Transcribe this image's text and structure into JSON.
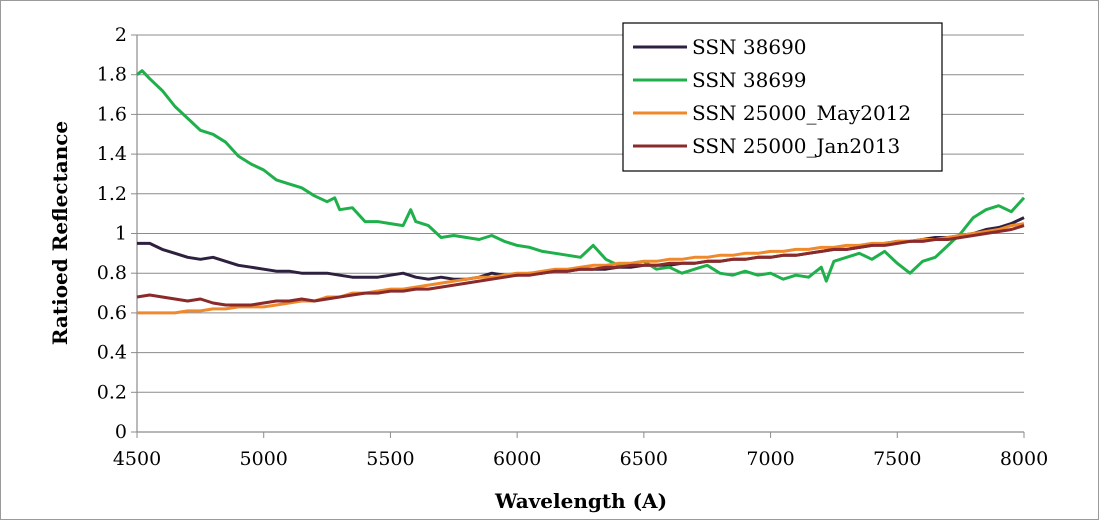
{
  "chart_data": {
    "type": "line",
    "title": "",
    "xlabel": "Wavelength (A)",
    "ylabel": "Ratioed Reflectance",
    "xlim": [
      4500,
      8000
    ],
    "ylim": [
      0,
      2
    ],
    "x_ticks": [
      4500,
      5000,
      5500,
      6000,
      6500,
      7000,
      7500,
      8000
    ],
    "y_ticks": [
      0,
      0.2,
      0.4,
      0.6,
      0.8,
      1,
      1.2,
      1.4,
      1.6,
      1.8,
      2
    ],
    "y_tick_labels": [
      "0",
      "0.2",
      "0.4",
      "0.6",
      "0.8",
      "1",
      "1.2",
      "1.4",
      "1.6",
      "1.8",
      "2"
    ],
    "grid": "horizontal",
    "legend_position": "top-right",
    "series": [
      {
        "name": "SSN 38690",
        "color": "#2e2140",
        "points": [
          [
            4500,
            0.95
          ],
          [
            4550,
            0.95
          ],
          [
            4600,
            0.92
          ],
          [
            4650,
            0.9
          ],
          [
            4700,
            0.88
          ],
          [
            4750,
            0.87
          ],
          [
            4800,
            0.88
          ],
          [
            4850,
            0.86
          ],
          [
            4900,
            0.84
          ],
          [
            4950,
            0.83
          ],
          [
            5000,
            0.82
          ],
          [
            5050,
            0.81
          ],
          [
            5100,
            0.81
          ],
          [
            5150,
            0.8
          ],
          [
            5200,
            0.8
          ],
          [
            5250,
            0.8
          ],
          [
            5300,
            0.79
          ],
          [
            5350,
            0.78
          ],
          [
            5400,
            0.78
          ],
          [
            5450,
            0.78
          ],
          [
            5500,
            0.79
          ],
          [
            5550,
            0.8
          ],
          [
            5600,
            0.78
          ],
          [
            5650,
            0.77
          ],
          [
            5700,
            0.78
          ],
          [
            5750,
            0.77
          ],
          [
            5800,
            0.77
          ],
          [
            5850,
            0.78
          ],
          [
            5900,
            0.8
          ],
          [
            5950,
            0.79
          ],
          [
            6000,
            0.79
          ],
          [
            6050,
            0.8
          ],
          [
            6100,
            0.8
          ],
          [
            6150,
            0.81
          ],
          [
            6200,
            0.81
          ],
          [
            6250,
            0.82
          ],
          [
            6300,
            0.82
          ],
          [
            6350,
            0.82
          ],
          [
            6400,
            0.83
          ],
          [
            6450,
            0.83
          ],
          [
            6500,
            0.84
          ],
          [
            6550,
            0.84
          ],
          [
            6600,
            0.84
          ],
          [
            6650,
            0.85
          ],
          [
            6700,
            0.85
          ],
          [
            6750,
            0.86
          ],
          [
            6800,
            0.86
          ],
          [
            6850,
            0.87
          ],
          [
            6900,
            0.87
          ],
          [
            6950,
            0.88
          ],
          [
            7000,
            0.88
          ],
          [
            7050,
            0.89
          ],
          [
            7100,
            0.89
          ],
          [
            7150,
            0.9
          ],
          [
            7200,
            0.91
          ],
          [
            7250,
            0.92
          ],
          [
            7300,
            0.92
          ],
          [
            7350,
            0.93
          ],
          [
            7400,
            0.94
          ],
          [
            7450,
            0.95
          ],
          [
            7500,
            0.96
          ],
          [
            7550,
            0.96
          ],
          [
            7600,
            0.97
          ],
          [
            7650,
            0.98
          ],
          [
            7700,
            0.98
          ],
          [
            7750,
            0.99
          ],
          [
            7800,
            1.0
          ],
          [
            7850,
            1.02
          ],
          [
            7900,
            1.03
          ],
          [
            7950,
            1.05
          ],
          [
            8000,
            1.08
          ]
        ]
      },
      {
        "name": "SSN 38699",
        "color": "#1fb04b",
        "points": [
          [
            4500,
            1.8
          ],
          [
            4520,
            1.82
          ],
          [
            4550,
            1.78
          ],
          [
            4600,
            1.72
          ],
          [
            4650,
            1.64
          ],
          [
            4700,
            1.58
          ],
          [
            4750,
            1.52
          ],
          [
            4800,
            1.5
          ],
          [
            4850,
            1.46
          ],
          [
            4900,
            1.39
          ],
          [
            4950,
            1.35
          ],
          [
            5000,
            1.32
          ],
          [
            5050,
            1.27
          ],
          [
            5100,
            1.25
          ],
          [
            5150,
            1.23
          ],
          [
            5200,
            1.19
          ],
          [
            5250,
            1.16
          ],
          [
            5280,
            1.18
          ],
          [
            5300,
            1.12
          ],
          [
            5350,
            1.13
          ],
          [
            5400,
            1.06
          ],
          [
            5450,
            1.06
          ],
          [
            5500,
            1.05
          ],
          [
            5550,
            1.04
          ],
          [
            5580,
            1.12
          ],
          [
            5600,
            1.06
          ],
          [
            5650,
            1.04
          ],
          [
            5700,
            0.98
          ],
          [
            5750,
            0.99
          ],
          [
            5800,
            0.98
          ],
          [
            5850,
            0.97
          ],
          [
            5900,
            0.99
          ],
          [
            5950,
            0.96
          ],
          [
            6000,
            0.94
          ],
          [
            6050,
            0.93
          ],
          [
            6100,
            0.91
          ],
          [
            6150,
            0.9
          ],
          [
            6200,
            0.89
          ],
          [
            6250,
            0.88
          ],
          [
            6300,
            0.94
          ],
          [
            6350,
            0.87
          ],
          [
            6400,
            0.84
          ],
          [
            6450,
            0.85
          ],
          [
            6500,
            0.86
          ],
          [
            6550,
            0.82
          ],
          [
            6600,
            0.83
          ],
          [
            6650,
            0.8
          ],
          [
            6700,
            0.82
          ],
          [
            6750,
            0.84
          ],
          [
            6800,
            0.8
          ],
          [
            6850,
            0.79
          ],
          [
            6900,
            0.81
          ],
          [
            6950,
            0.79
          ],
          [
            7000,
            0.8
          ],
          [
            7050,
            0.77
          ],
          [
            7100,
            0.79
          ],
          [
            7150,
            0.78
          ],
          [
            7200,
            0.83
          ],
          [
            7220,
            0.76
          ],
          [
            7250,
            0.86
          ],
          [
            7300,
            0.88
          ],
          [
            7350,
            0.9
          ],
          [
            7400,
            0.87
          ],
          [
            7450,
            0.91
          ],
          [
            7500,
            0.85
          ],
          [
            7550,
            0.8
          ],
          [
            7600,
            0.86
          ],
          [
            7650,
            0.88
          ],
          [
            7700,
            0.94
          ],
          [
            7750,
            1.0
          ],
          [
            7800,
            1.08
          ],
          [
            7850,
            1.12
          ],
          [
            7900,
            1.14
          ],
          [
            7950,
            1.11
          ],
          [
            8000,
            1.18
          ]
        ]
      },
      {
        "name": "SSN 25000_May2012",
        "color": "#f0892b",
        "points": [
          [
            4500,
            0.6
          ],
          [
            4550,
            0.6
          ],
          [
            4600,
            0.6
          ],
          [
            4650,
            0.6
          ],
          [
            4700,
            0.61
          ],
          [
            4750,
            0.61
          ],
          [
            4800,
            0.62
          ],
          [
            4850,
            0.62
          ],
          [
            4900,
            0.63
          ],
          [
            4950,
            0.63
          ],
          [
            5000,
            0.63
          ],
          [
            5050,
            0.64
          ],
          [
            5100,
            0.65
          ],
          [
            5150,
            0.66
          ],
          [
            5200,
            0.66
          ],
          [
            5250,
            0.68
          ],
          [
            5300,
            0.68
          ],
          [
            5350,
            0.7
          ],
          [
            5400,
            0.7
          ],
          [
            5450,
            0.71
          ],
          [
            5500,
            0.72
          ],
          [
            5550,
            0.72
          ],
          [
            5600,
            0.73
          ],
          [
            5650,
            0.74
          ],
          [
            5700,
            0.75
          ],
          [
            5750,
            0.76
          ],
          [
            5800,
            0.77
          ],
          [
            5850,
            0.78
          ],
          [
            5900,
            0.78
          ],
          [
            5950,
            0.79
          ],
          [
            6000,
            0.8
          ],
          [
            6050,
            0.8
          ],
          [
            6100,
            0.81
          ],
          [
            6150,
            0.82
          ],
          [
            6200,
            0.82
          ],
          [
            6250,
            0.83
          ],
          [
            6300,
            0.84
          ],
          [
            6350,
            0.84
          ],
          [
            6400,
            0.85
          ],
          [
            6450,
            0.85
          ],
          [
            6500,
            0.86
          ],
          [
            6550,
            0.86
          ],
          [
            6600,
            0.87
          ],
          [
            6650,
            0.87
          ],
          [
            6700,
            0.88
          ],
          [
            6750,
            0.88
          ],
          [
            6800,
            0.89
          ],
          [
            6850,
            0.89
          ],
          [
            6900,
            0.9
          ],
          [
            6950,
            0.9
          ],
          [
            7000,
            0.91
          ],
          [
            7050,
            0.91
          ],
          [
            7100,
            0.92
          ],
          [
            7150,
            0.92
          ],
          [
            7200,
            0.93
          ],
          [
            7250,
            0.93
          ],
          [
            7300,
            0.94
          ],
          [
            7350,
            0.94
          ],
          [
            7400,
            0.95
          ],
          [
            7450,
            0.95
          ],
          [
            7500,
            0.96
          ],
          [
            7550,
            0.96
          ],
          [
            7600,
            0.97
          ],
          [
            7650,
            0.97
          ],
          [
            7700,
            0.98
          ],
          [
            7750,
            0.99
          ],
          [
            7800,
            1.0
          ],
          [
            7850,
            1.01
          ],
          [
            7900,
            1.02
          ],
          [
            7950,
            1.04
          ],
          [
            8000,
            1.05
          ]
        ]
      },
      {
        "name": "SSN 25000_Jan2013",
        "color": "#8b2a2a",
        "points": [
          [
            4500,
            0.68
          ],
          [
            4550,
            0.69
          ],
          [
            4600,
            0.68
          ],
          [
            4650,
            0.67
          ],
          [
            4700,
            0.66
          ],
          [
            4750,
            0.67
          ],
          [
            4800,
            0.65
          ],
          [
            4850,
            0.64
          ],
          [
            4900,
            0.64
          ],
          [
            4950,
            0.64
          ],
          [
            5000,
            0.65
          ],
          [
            5050,
            0.66
          ],
          [
            5100,
            0.66
          ],
          [
            5150,
            0.67
          ],
          [
            5200,
            0.66
          ],
          [
            5250,
            0.67
          ],
          [
            5300,
            0.68
          ],
          [
            5350,
            0.69
          ],
          [
            5400,
            0.7
          ],
          [
            5450,
            0.7
          ],
          [
            5500,
            0.71
          ],
          [
            5550,
            0.71
          ],
          [
            5600,
            0.72
          ],
          [
            5650,
            0.72
          ],
          [
            5700,
            0.73
          ],
          [
            5750,
            0.74
          ],
          [
            5800,
            0.75
          ],
          [
            5850,
            0.76
          ],
          [
            5900,
            0.77
          ],
          [
            5950,
            0.78
          ],
          [
            6000,
            0.79
          ],
          [
            6050,
            0.79
          ],
          [
            6100,
            0.8
          ],
          [
            6150,
            0.81
          ],
          [
            6200,
            0.81
          ],
          [
            6250,
            0.82
          ],
          [
            6300,
            0.82
          ],
          [
            6350,
            0.83
          ],
          [
            6400,
            0.83
          ],
          [
            6450,
            0.84
          ],
          [
            6500,
            0.84
          ],
          [
            6550,
            0.84
          ],
          [
            6600,
            0.85
          ],
          [
            6650,
            0.85
          ],
          [
            6700,
            0.85
          ],
          [
            6750,
            0.86
          ],
          [
            6800,
            0.86
          ],
          [
            6850,
            0.87
          ],
          [
            6900,
            0.87
          ],
          [
            6950,
            0.88
          ],
          [
            7000,
            0.88
          ],
          [
            7050,
            0.89
          ],
          [
            7100,
            0.89
          ],
          [
            7150,
            0.9
          ],
          [
            7200,
            0.91
          ],
          [
            7250,
            0.92
          ],
          [
            7300,
            0.92
          ],
          [
            7350,
            0.93
          ],
          [
            7400,
            0.94
          ],
          [
            7450,
            0.94
          ],
          [
            7500,
            0.95
          ],
          [
            7550,
            0.96
          ],
          [
            7600,
            0.96
          ],
          [
            7650,
            0.97
          ],
          [
            7700,
            0.97
          ],
          [
            7750,
            0.98
          ],
          [
            7800,
            0.99
          ],
          [
            7850,
            1.0
          ],
          [
            7900,
            1.01
          ],
          [
            7950,
            1.02
          ],
          [
            8000,
            1.04
          ]
        ]
      }
    ]
  }
}
